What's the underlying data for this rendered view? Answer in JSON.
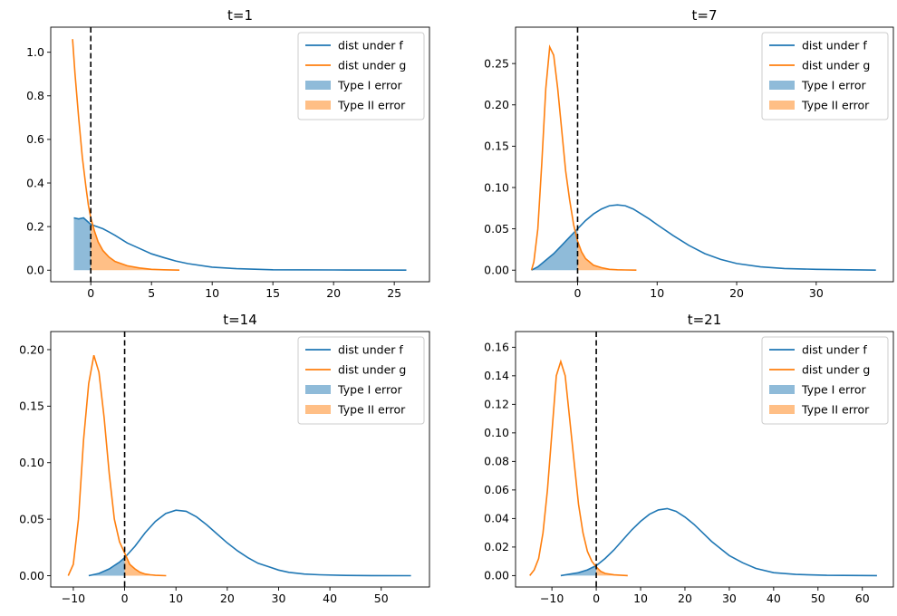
{
  "chart_data": [
    {
      "type": "line",
      "title": "t=1",
      "xlim": [
        -3.3,
        27.9
      ],
      "ylim": [
        -0.053,
        1.115
      ],
      "xticks": [
        0,
        5,
        10,
        15,
        20,
        25
      ],
      "yticks": [
        0.0,
        0.2,
        0.4,
        0.6,
        0.8,
        1.0
      ],
      "threshold_x": 0,
      "legend_loc": "upper right",
      "series": [
        {
          "name": "dist under f",
          "color": "#1f77b4",
          "x": [
            -1.4,
            -1.0,
            -0.6,
            -0.3,
            0.0,
            0.5,
            1.0,
            1.5,
            2.0,
            3.0,
            4.0,
            5.0,
            6.0,
            7.0,
            8.0,
            10.0,
            12.0,
            15.0,
            20.0,
            26.0
          ],
          "y": [
            0.24,
            0.235,
            0.24,
            0.225,
            0.21,
            0.2,
            0.19,
            0.175,
            0.16,
            0.125,
            0.1,
            0.075,
            0.058,
            0.042,
            0.03,
            0.014,
            0.007,
            0.002,
            0.001,
            0.0
          ]
        },
        {
          "name": "dist under g",
          "color": "#ff7f0e",
          "x": [
            -1.5,
            -1.3,
            -1.0,
            -0.7,
            -0.4,
            -0.2,
            0.0,
            0.3,
            0.6,
            1.0,
            1.5,
            2.0,
            3.0,
            4.0,
            5.0,
            6.0,
            7.3
          ],
          "y": [
            1.06,
            0.9,
            0.7,
            0.52,
            0.38,
            0.3,
            0.24,
            0.18,
            0.13,
            0.09,
            0.06,
            0.04,
            0.02,
            0.01,
            0.004,
            0.002,
            0.0
          ]
        }
      ],
      "fills": [
        {
          "name": "Type I error",
          "color": "#1f77b4",
          "source": "dist under f",
          "region": "x <= 0"
        },
        {
          "name": "Type II error",
          "color": "#ff7f0e",
          "source": "dist under g",
          "region": "x >= 0"
        }
      ]
    },
    {
      "type": "line",
      "title": "t=7",
      "xlim": [
        -7.8,
        39.7
      ],
      "ylim": [
        -0.014,
        0.294
      ],
      "xticks": [
        0,
        10,
        20,
        30
      ],
      "yticks": [
        0.0,
        0.05,
        0.1,
        0.15,
        0.2,
        0.25
      ],
      "threshold_x": 0,
      "legend_loc": "upper right",
      "series": [
        {
          "name": "dist under f",
          "color": "#1f77b4",
          "x": [
            -5.8,
            -5.0,
            -4.0,
            -3.0,
            -2.0,
            -1.0,
            0.0,
            1.0,
            2.0,
            3.0,
            4.0,
            5.0,
            6.0,
            7.0,
            8.0,
            9.0,
            10.0,
            12.0,
            14.0,
            16.0,
            18.0,
            20.0,
            23.0,
            26.0,
            30.0,
            37.5
          ],
          "y": [
            0.0,
            0.004,
            0.012,
            0.02,
            0.03,
            0.04,
            0.05,
            0.06,
            0.068,
            0.074,
            0.078,
            0.079,
            0.078,
            0.074,
            0.068,
            0.062,
            0.055,
            0.042,
            0.03,
            0.02,
            0.013,
            0.008,
            0.004,
            0.002,
            0.001,
            0.0
          ]
        },
        {
          "name": "dist under g",
          "color": "#ff7f0e",
          "x": [
            -5.8,
            -5.5,
            -5.0,
            -4.5,
            -4.0,
            -3.5,
            -3.0,
            -2.5,
            -2.0,
            -1.5,
            -1.0,
            -0.5,
            0.0,
            0.5,
            1.0,
            2.0,
            3.0,
            4.0,
            5.0,
            6.0,
            7.4
          ],
          "y": [
            0.0,
            0.01,
            0.05,
            0.13,
            0.22,
            0.27,
            0.26,
            0.22,
            0.17,
            0.12,
            0.085,
            0.055,
            0.035,
            0.022,
            0.014,
            0.006,
            0.003,
            0.001,
            0.0005,
            0.0002,
            0.0
          ]
        }
      ],
      "fills": [
        {
          "name": "Type I error",
          "color": "#1f77b4",
          "source": "dist under f",
          "region": "x <= 0"
        },
        {
          "name": "Type II error",
          "color": "#ff7f0e",
          "source": "dist under g",
          "region": "x >= 0"
        }
      ]
    },
    {
      "type": "line",
      "title": "t=14",
      "xlim": [
        -14.4,
        59.4
      ],
      "ylim": [
        -0.01,
        0.216
      ],
      "xticks": [
        -10,
        0,
        10,
        20,
        30,
        40,
        50
      ],
      "yticks": [
        0.0,
        0.05,
        0.1,
        0.15,
        0.2
      ],
      "threshold_x": 0,
      "legend_loc": "upper right",
      "series": [
        {
          "name": "dist under f",
          "color": "#1f77b4",
          "x": [
            -7.0,
            -5.0,
            -3.0,
            -1.0,
            0.0,
            2.0,
            4.0,
            6.0,
            8.0,
            10.0,
            12.0,
            14.0,
            16.0,
            18.0,
            20.0,
            22.0,
            24.0,
            26.0,
            28.0,
            30.0,
            32.0,
            35.0,
            38.0,
            42.0,
            48.0,
            55.8
          ],
          "y": [
            0.0,
            0.002,
            0.006,
            0.012,
            0.016,
            0.026,
            0.038,
            0.048,
            0.055,
            0.058,
            0.057,
            0.052,
            0.045,
            0.037,
            0.029,
            0.022,
            0.016,
            0.011,
            0.008,
            0.005,
            0.003,
            0.0015,
            0.0008,
            0.0003,
            0.0001,
            0.0
          ]
        },
        {
          "name": "dist under g",
          "color": "#ff7f0e",
          "x": [
            -11.0,
            -10.0,
            -9.0,
            -8.0,
            -7.0,
            -6.0,
            -5.0,
            -4.0,
            -3.0,
            -2.0,
            -1.0,
            0.0,
            1.0,
            2.0,
            3.0,
            4.0,
            5.0,
            6.0,
            8.1
          ],
          "y": [
            0.0,
            0.01,
            0.05,
            0.12,
            0.17,
            0.195,
            0.18,
            0.14,
            0.09,
            0.05,
            0.03,
            0.02,
            0.01,
            0.006,
            0.003,
            0.0015,
            0.0008,
            0.0003,
            0.0
          ]
        }
      ],
      "fills": [
        {
          "name": "Type I error",
          "color": "#1f77b4",
          "source": "dist under f",
          "region": "x <= 0"
        },
        {
          "name": "Type II error",
          "color": "#ff7f0e",
          "source": "dist under g",
          "region": "x >= 0"
        }
      ]
    },
    {
      "type": "line",
      "title": "t=21",
      "xlim": [
        -18.2,
        67.0
      ],
      "ylim": [
        -0.008,
        0.171
      ],
      "xticks": [
        -10,
        0,
        10,
        20,
        30,
        40,
        50,
        60
      ],
      "yticks": [
        0.0,
        0.02,
        0.04,
        0.06,
        0.08,
        0.1,
        0.12,
        0.14,
        0.16
      ],
      "threshold_x": 0,
      "legend_loc": "upper right",
      "series": [
        {
          "name": "dist under f",
          "color": "#1f77b4",
          "x": [
            -8.0,
            -6.0,
            -4.0,
            -2.0,
            0.0,
            2.0,
            4.0,
            6.0,
            8.0,
            10.0,
            12.0,
            14.0,
            16.0,
            18.0,
            20.0,
            22.0,
            24.0,
            26.0,
            28.0,
            30.0,
            33.0,
            36.0,
            40.0,
            45.0,
            52.0,
            63.3
          ],
          "y": [
            0.0,
            0.001,
            0.002,
            0.004,
            0.007,
            0.012,
            0.018,
            0.025,
            0.032,
            0.038,
            0.043,
            0.046,
            0.047,
            0.045,
            0.041,
            0.036,
            0.03,
            0.024,
            0.019,
            0.014,
            0.009,
            0.005,
            0.002,
            0.0008,
            0.0002,
            0.0
          ]
        },
        {
          "name": "dist under g",
          "color": "#ff7f0e",
          "x": [
            -15.0,
            -14.0,
            -13.0,
            -12.0,
            -11.0,
            -10.0,
            -9.0,
            -8.0,
            -7.0,
            -6.0,
            -5.0,
            -4.0,
            -3.0,
            -2.0,
            -1.0,
            0.0,
            1.0,
            2.0,
            4.0,
            7.1
          ],
          "y": [
            0.0,
            0.004,
            0.012,
            0.03,
            0.06,
            0.1,
            0.14,
            0.15,
            0.14,
            0.11,
            0.08,
            0.05,
            0.03,
            0.017,
            0.01,
            0.006,
            0.003,
            0.0015,
            0.0005,
            0.0
          ]
        }
      ],
      "fills": [
        {
          "name": "Type I error",
          "color": "#1f77b4",
          "source": "dist under f",
          "region": "x <= 0"
        },
        {
          "name": "Type II error",
          "color": "#ff7f0e",
          "source": "dist under g",
          "region": "x >= 0"
        }
      ]
    }
  ]
}
